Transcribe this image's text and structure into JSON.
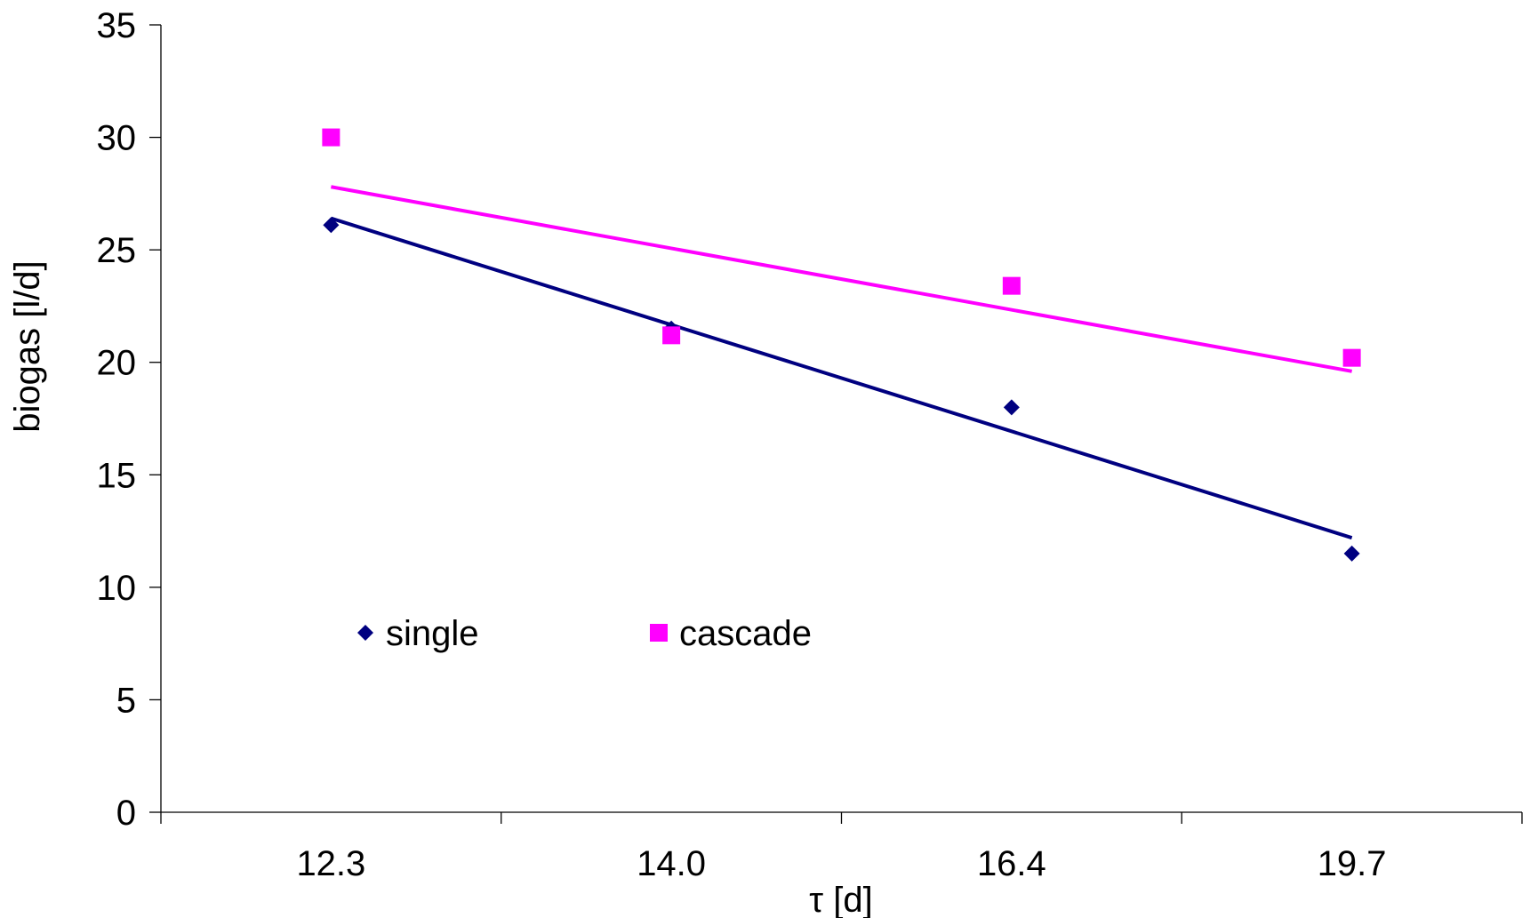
{
  "chart_data": {
    "type": "scatter",
    "categories": [
      "12.3",
      "14.0",
      "16.4",
      "19.7"
    ],
    "xlabel": "τ [d]",
    "ylabel": "biogas [l/d]",
    "ylim": [
      0,
      35
    ],
    "yticks": [
      "0",
      "5",
      "10",
      "15",
      "20",
      "25",
      "30",
      "35"
    ],
    "grid": false,
    "legend_position": "inside-lower-left",
    "series": [
      {
        "name": "single",
        "marker": "diamond",
        "color": "#000080",
        "values": [
          26.1,
          21.5,
          18.0,
          11.5
        ],
        "trendline": {
          "type": "linear",
          "start": 26.4,
          "end": 12.2
        }
      },
      {
        "name": "cascade",
        "marker": "square",
        "color": "#FF00FF",
        "values": [
          30.0,
          21.2,
          23.4,
          20.2
        ],
        "trendline": {
          "type": "linear",
          "start": 27.8,
          "end": 19.6
        }
      }
    ]
  }
}
